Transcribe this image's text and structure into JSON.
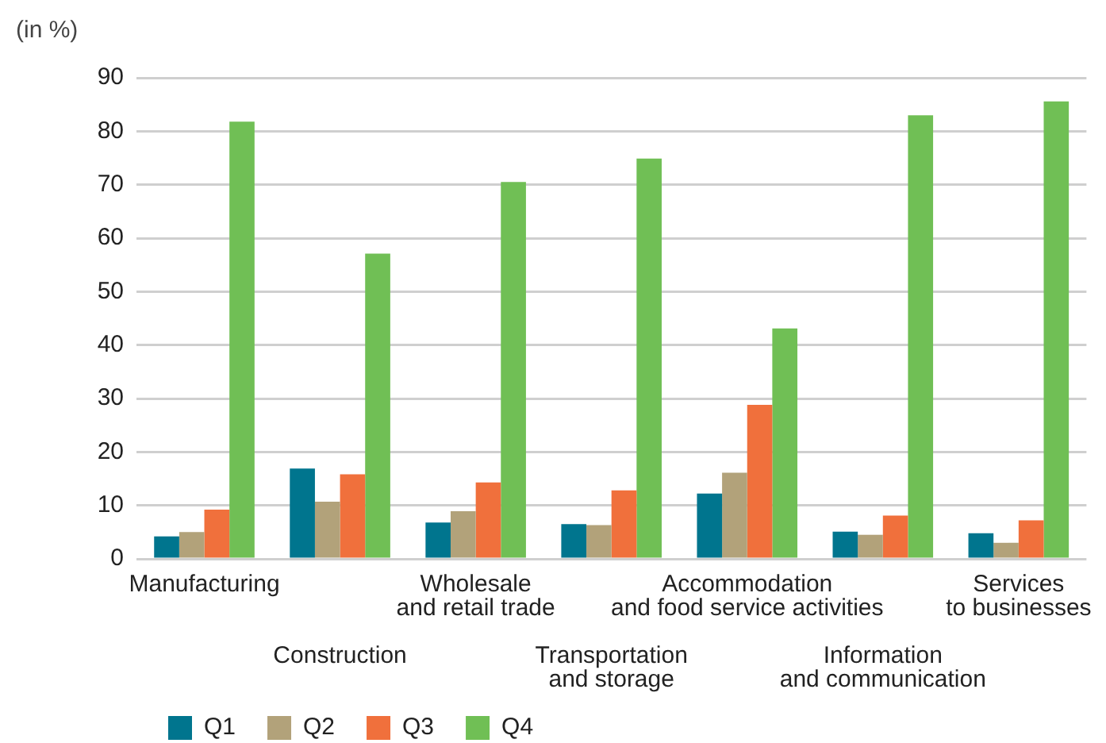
{
  "chart_data": {
    "type": "bar",
    "ylabel": "(in %)",
    "categories": [
      "Manufacturing",
      "Construction",
      "Wholesale\nand retail trade",
      "Transportation\nand storage",
      "Accommodation\nand food service activities",
      "Information\nand communication",
      "Services\nto businesses"
    ],
    "series": [
      {
        "name": "Q1",
        "color": "#00758e",
        "values": [
          4.2,
          16.9,
          6.8,
          6.5,
          12.2,
          5.1,
          4.8
        ]
      },
      {
        "name": "Q2",
        "color": "#b2a27a",
        "values": [
          5.0,
          10.7,
          8.9,
          6.3,
          16.1,
          4.5,
          3.0
        ]
      },
      {
        "name": "Q3",
        "color": "#f0703c",
        "values": [
          9.2,
          15.8,
          14.3,
          12.8,
          28.8,
          8.1,
          7.2
        ]
      },
      {
        "name": "Q4",
        "color": "#70bf55",
        "values": [
          81.8,
          57.1,
          70.5,
          74.9,
          43.1,
          83.0,
          85.6
        ]
      }
    ],
    "ylim": [
      0,
      90
    ],
    "yticks": [
      0,
      10,
      20,
      30,
      40,
      50,
      60,
      70,
      80,
      90
    ],
    "grid": "y",
    "legend": "bottom left"
  }
}
